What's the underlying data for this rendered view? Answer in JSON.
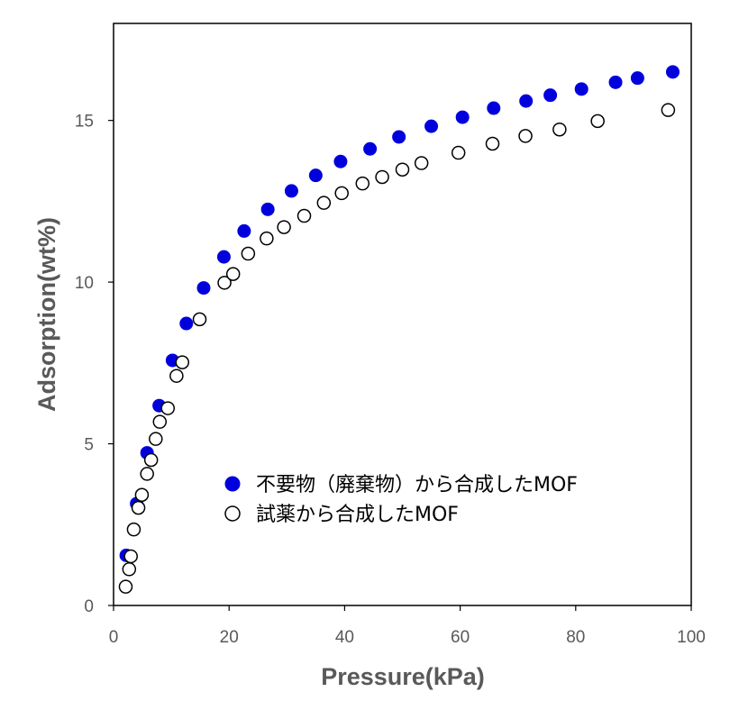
{
  "chart_data": {
    "type": "scatter",
    "title": "",
    "xlabel": "Pressure(kPa)",
    "ylabel": "Adsorption(wt%)",
    "xlim": [
      0,
      100
    ],
    "ylim": [
      0,
      18
    ],
    "xticks": [
      0,
      20,
      40,
      60,
      80,
      100
    ],
    "yticks": [
      0,
      5,
      10,
      15
    ],
    "grid": false,
    "legend_position": "center-right",
    "series": [
      {
        "name": "不要物（廃棄物）から合成したMOF",
        "marker": "filled-circle",
        "color": "#0000dd",
        "points": [
          [
            2.2,
            1.55
          ],
          [
            4.0,
            3.15
          ],
          [
            5.8,
            4.72
          ],
          [
            7.9,
            6.18
          ],
          [
            10.2,
            7.58
          ],
          [
            12.6,
            8.72
          ],
          [
            15.6,
            9.82
          ],
          [
            19.1,
            10.78
          ],
          [
            22.6,
            11.58
          ],
          [
            26.7,
            12.25
          ],
          [
            30.8,
            12.82
          ],
          [
            35.0,
            13.3
          ],
          [
            39.3,
            13.73
          ],
          [
            44.4,
            14.12
          ],
          [
            49.4,
            14.49
          ],
          [
            55.0,
            14.82
          ],
          [
            60.4,
            15.1
          ],
          [
            65.8,
            15.38
          ],
          [
            71.4,
            15.6
          ],
          [
            75.6,
            15.78
          ],
          [
            81.0,
            15.97
          ],
          [
            86.9,
            16.18
          ],
          [
            90.7,
            16.31
          ],
          [
            96.8,
            16.5
          ]
        ]
      },
      {
        "name": "試薬から合成したMOF",
        "marker": "open-circle",
        "color": "#000000",
        "points": [
          [
            2.1,
            0.58
          ],
          [
            2.7,
            1.12
          ],
          [
            3.0,
            1.52
          ],
          [
            3.5,
            2.35
          ],
          [
            4.3,
            3.02
          ],
          [
            4.9,
            3.42
          ],
          [
            5.8,
            4.07
          ],
          [
            6.5,
            4.5
          ],
          [
            7.3,
            5.15
          ],
          [
            8.0,
            5.68
          ],
          [
            9.4,
            6.1
          ],
          [
            10.9,
            7.1
          ],
          [
            11.9,
            7.52
          ],
          [
            14.9,
            8.85
          ],
          [
            19.2,
            9.98
          ],
          [
            20.7,
            10.25
          ],
          [
            23.3,
            10.88
          ],
          [
            26.5,
            11.35
          ],
          [
            29.5,
            11.7
          ],
          [
            33.0,
            12.05
          ],
          [
            36.4,
            12.45
          ],
          [
            39.5,
            12.75
          ],
          [
            43.1,
            13.05
          ],
          [
            46.5,
            13.25
          ],
          [
            50.0,
            13.48
          ],
          [
            53.3,
            13.68
          ],
          [
            59.7,
            14.0
          ],
          [
            65.6,
            14.28
          ],
          [
            71.3,
            14.52
          ],
          [
            77.2,
            14.72
          ],
          [
            83.8,
            14.98
          ],
          [
            96.0,
            15.32
          ]
        ]
      }
    ]
  }
}
